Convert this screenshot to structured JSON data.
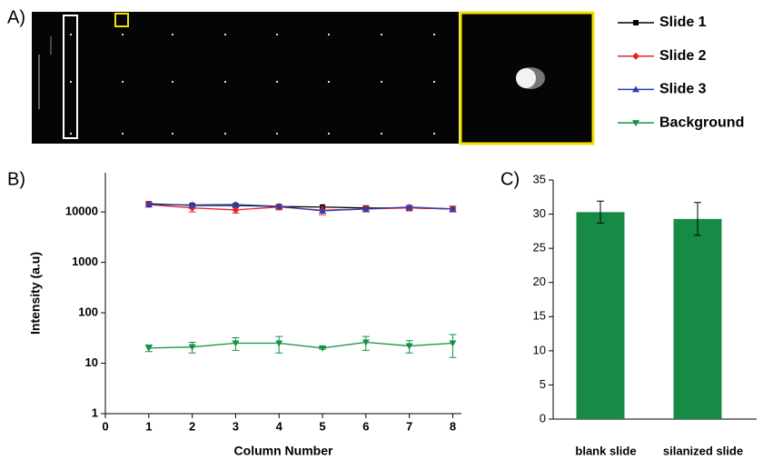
{
  "panel_labels": [
    "A)",
    "B)",
    "C)"
  ],
  "chart_data": [
    {
      "type": "line",
      "x_label": "Column Number",
      "y_label": "Intensity (a.u)",
      "x": [
        1,
        2,
        3,
        4,
        5,
        6,
        7,
        8
      ],
      "xlim": [
        0,
        8.2
      ],
      "xticks": [
        0,
        1,
        2,
        3,
        4,
        5,
        6,
        7,
        8
      ],
      "log_y": true,
      "ylim": [
        1,
        60000
      ],
      "yticks": [
        1,
        10,
        100,
        1000,
        10000
      ],
      "legend": "right",
      "series": [
        {
          "name": "Slide 1",
          "color": "#000000",
          "marker": "square",
          "values": [
            14500,
            13500,
            13500,
            12800,
            12500,
            12000,
            12000,
            11500
          ]
        },
        {
          "name": "Slide 2",
          "color": "#e8202a",
          "marker": "diamond",
          "values": [
            14000,
            12000,
            11000,
            12500,
            10800,
            11500,
            12000,
            11500
          ],
          "errors": [
            1500,
            2000,
            1500,
            1500,
            2000,
            1500,
            1500,
            1500
          ]
        },
        {
          "name": "Slide 3",
          "color": "#2b3fb0",
          "marker": "triangle-up",
          "values": [
            14000,
            13800,
            14000,
            13000,
            10500,
            11500,
            12500,
            11500
          ]
        },
        {
          "name": "Background",
          "color": "#159243",
          "marker": "triangle-down",
          "values": [
            20,
            21,
            25,
            25,
            20,
            26,
            22,
            25
          ],
          "errors": [
            3,
            5,
            7,
            9,
            1,
            8,
            6,
            12
          ]
        }
      ]
    },
    {
      "type": "bar",
      "categories": [
        "blank slide",
        "silanized slide"
      ],
      "values": [
        30.3,
        29.3
      ],
      "errors": [
        1.6,
        2.4
      ],
      "color": "#178a45",
      "ylim": [
        0,
        35
      ],
      "yticks": [
        0,
        5,
        10,
        15,
        20,
        25,
        30,
        35
      ]
    }
  ]
}
